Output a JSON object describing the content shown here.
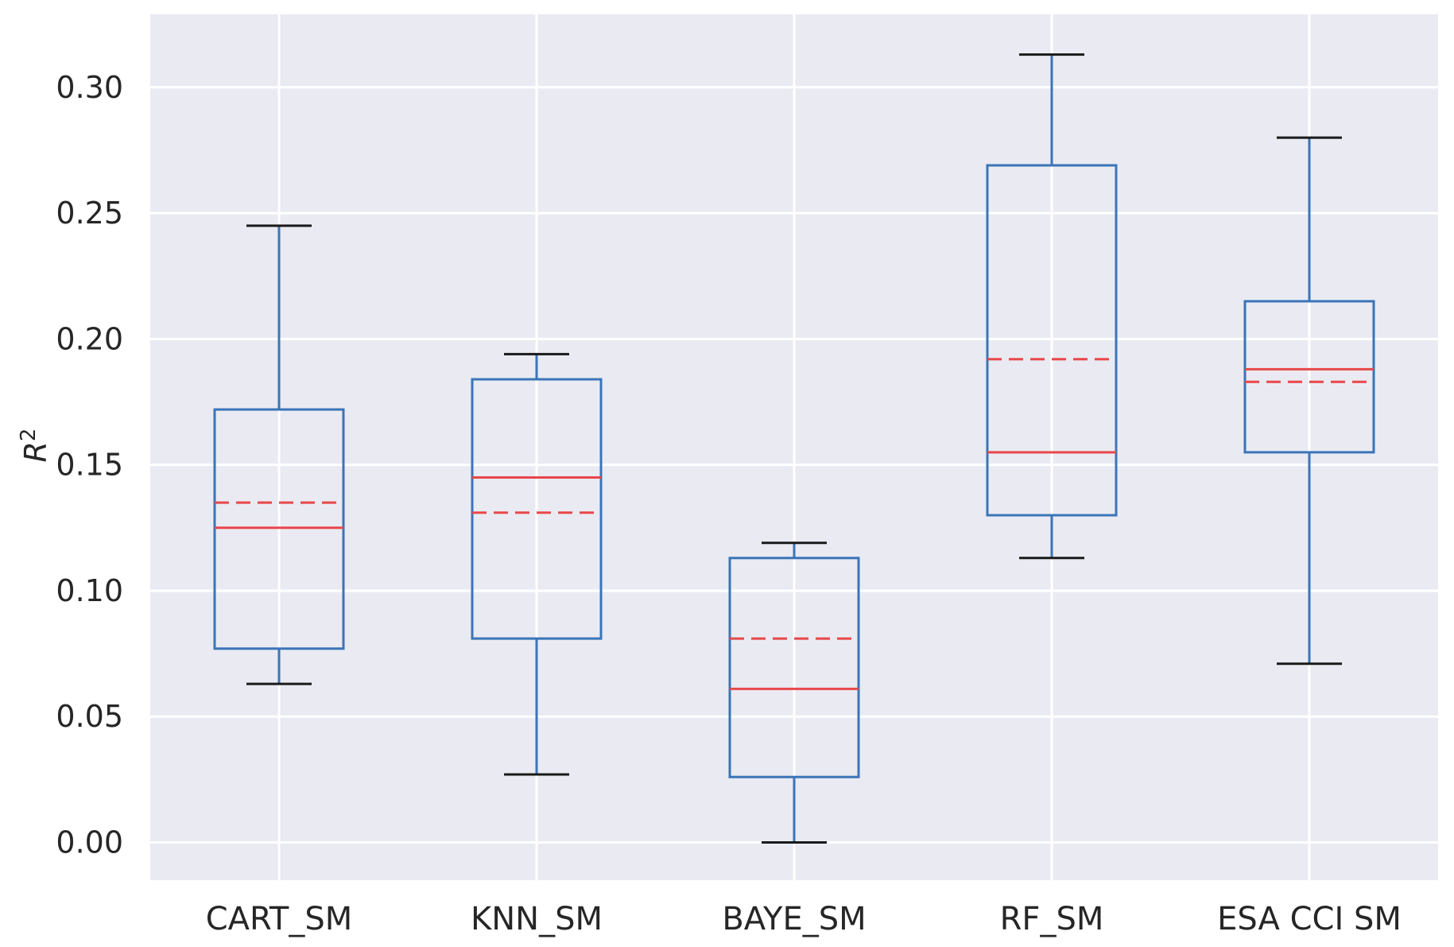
{
  "chart_data": {
    "type": "box",
    "title": "",
    "xlabel": "",
    "ylabel": "R",
    "ylabel_superscript": "2",
    "ylim": [
      -0.015,
      0.329
    ],
    "yticks": [
      0.0,
      0.05,
      0.1,
      0.15,
      0.2,
      0.25,
      0.3
    ],
    "ytick_labels": [
      "0.00",
      "0.05",
      "0.10",
      "0.15",
      "0.20",
      "0.25",
      "0.30"
    ],
    "categories": [
      "CART_SM",
      "KNN_SM",
      "BAYE_SM",
      "RF_SM",
      "ESA CCI SM"
    ],
    "boxes": [
      {
        "name": "CART_SM",
        "whisker_low": 0.063,
        "q1": 0.077,
        "median": 0.125,
        "mean": 0.135,
        "q3": 0.172,
        "whisker_high": 0.245
      },
      {
        "name": "KNN_SM",
        "whisker_low": 0.027,
        "q1": 0.081,
        "median": 0.145,
        "mean": 0.131,
        "q3": 0.184,
        "whisker_high": 0.194
      },
      {
        "name": "BAYE_SM",
        "whisker_low": 0.0,
        "q1": 0.026,
        "median": 0.061,
        "mean": 0.081,
        "q3": 0.113,
        "whisker_high": 0.119
      },
      {
        "name": "RF_SM",
        "whisker_low": 0.113,
        "q1": 0.13,
        "median": 0.155,
        "mean": 0.192,
        "q3": 0.269,
        "whisker_high": 0.313
      },
      {
        "name": "ESA CCI SM",
        "whisker_low": 0.071,
        "q1": 0.155,
        "median": 0.188,
        "mean": 0.183,
        "q3": 0.215,
        "whisker_high": 0.28
      }
    ],
    "colors": {
      "box": "#3a75b8",
      "cap": "#1a1a1a",
      "median": "#e8474a",
      "mean": "#e8474a",
      "background": "#eaeaf2",
      "grid": "#ffffff"
    },
    "grid": true,
    "legend": "none"
  }
}
